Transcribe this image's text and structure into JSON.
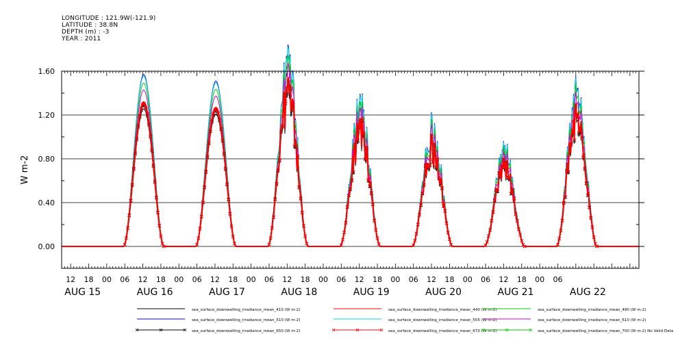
{
  "header": {
    "lines": [
      "LONGITUDE : 121.9W(-121.9)",
      "LATITUDE : 38.8N",
      "DEPTH (m) : -3",
      "YEAR : 2011"
    ]
  },
  "chart_data": {
    "type": "line",
    "ylabel": "W m-2",
    "ylim": [
      -0.2,
      1.6
    ],
    "yticks": [
      0.0,
      0.4,
      0.8,
      1.2,
      1.6
    ],
    "ytick_labels": [
      "0.00",
      "0.40",
      "0.80",
      "1.20",
      "1.60"
    ],
    "xlim_hours": [
      -9,
      15
    ],
    "hour_tick_labels": [
      "12",
      "18",
      "00",
      "06",
      "12",
      "18",
      "00",
      "06",
      "12",
      "18",
      "00",
      "06",
      "12",
      "18",
      "00",
      "06",
      "12",
      "18",
      "00",
      "06",
      "12",
      "18",
      "00",
      "06",
      "12",
      "18",
      "00",
      "06"
    ],
    "day_labels": [
      "AUG 15",
      "AUG 16",
      "AUG 17",
      "AUG 18",
      "AUG 19",
      "AUG 20",
      "AUG 21",
      "AUG 22"
    ],
    "days": [
      {
        "label": "AUG 15",
        "peak_410": 1.26,
        "peak_max": 1.57,
        "noisy": false
      },
      {
        "label": "AUG 16",
        "peak_410": 1.22,
        "peak_max": 1.51,
        "noisy": false
      },
      {
        "label": "AUG 17",
        "peak_410": 1.22,
        "peak_max": 1.57,
        "noisy": true
      },
      {
        "label": "AUG 18",
        "peak_410": 0.86,
        "peak_max": 1.24,
        "noisy": true
      },
      {
        "label": "AUG 19",
        "peak_410": 0.78,
        "peak_max": 1.06,
        "noisy": true
      },
      {
        "label": "AUG 20",
        "peak_410": 0.62,
        "peak_max": 0.84,
        "noisy": true
      },
      {
        "label": "AUG 21",
        "peak_410": 1.0,
        "peak_max": 1.37,
        "noisy": true
      }
    ],
    "series": [
      {
        "name": "sea_surface_downwelling_irradiance_mean_410 (W m-2)",
        "color": "#000000",
        "scale": 0.8,
        "marker": "none"
      },
      {
        "name": "sea_surface_downwelling_irradiance_mean_440 (W m-2)",
        "color": "#ff0000",
        "scale": 0.84,
        "marker": "none"
      },
      {
        "name": "sea_surface_downwelling_irradiance_mean_490 (W m-2)",
        "color": "#00cc00",
        "scale": 0.95,
        "marker": "none"
      },
      {
        "name": "sea_surface_downwelling_irradiance_mean_510 (W m-2)",
        "color": "#0000ff",
        "scale": 1.0,
        "marker": "none"
      },
      {
        "name": "sea_surface_downwelling_irradiance_mean_555 (W m-2)",
        "color": "#00dddd",
        "scale": 0.99,
        "marker": "none"
      },
      {
        "name": "sea_surface_downwelling_irradiance_mean_610 (W m-2)",
        "color": "#dd00dd",
        "scale": 0.91,
        "marker": "none"
      },
      {
        "name": "sea_surface_downwelling_irradiance_mean_650 (W m-2)",
        "color": "#000000",
        "scale": 0.82,
        "marker": "x"
      },
      {
        "name": "sea_surface_downwelling_irradiance_mean_670 (W m-2)",
        "color": "#ff0000",
        "scale": 0.83,
        "marker": "x"
      },
      {
        "name": "sea_surface_downwelling_irradiance_mean_700 (W m-2) No Valid Data",
        "color": "#00cc00",
        "scale": 0,
        "marker": "x"
      }
    ]
  }
}
